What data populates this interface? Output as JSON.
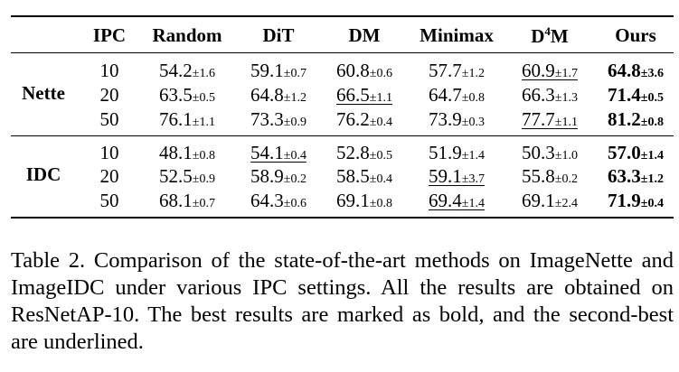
{
  "table": {
    "headers": [
      "IPC",
      "Random",
      "DiT",
      "DM",
      "Minimax",
      "D",
      "4",
      "M",
      "Ours"
    ],
    "groups": [
      {
        "name": "Nette",
        "rows": [
          {
            "ipc": "10",
            "cells": [
              [
                "54.2",
                "±1.6"
              ],
              [
                "59.1",
                "±0.7"
              ],
              [
                "60.8",
                "±0.6"
              ],
              [
                "57.7",
                "±1.2"
              ],
              [
                "60.9",
                "±1.7"
              ],
              [
                "64.8",
                "±3.6"
              ]
            ]
          },
          {
            "ipc": "20",
            "cells": [
              [
                "63.5",
                "±0.5"
              ],
              [
                "64.8",
                "±1.2"
              ],
              [
                "66.5",
                "±1.1"
              ],
              [
                "64.7",
                "±0.8"
              ],
              [
                "66.3",
                "±1.3"
              ],
              [
                "71.4",
                "±0.5"
              ]
            ]
          },
          {
            "ipc": "50",
            "cells": [
              [
                "76.1",
                "±1.1"
              ],
              [
                "73.3",
                "±0.9"
              ],
              [
                "76.2",
                "±0.4"
              ],
              [
                "73.9",
                "±0.3"
              ],
              [
                "77.7",
                "±1.1"
              ],
              [
                "81.2",
                "±0.8"
              ]
            ]
          }
        ]
      },
      {
        "name": "IDC",
        "rows": [
          {
            "ipc": "10",
            "cells": [
              [
                "48.1",
                "±0.8"
              ],
              [
                "54.1",
                "±0.4"
              ],
              [
                "52.8",
                "±0.5"
              ],
              [
                "51.9",
                "±1.4"
              ],
              [
                "50.3",
                "±1.0"
              ],
              [
                "57.0",
                "±1.4"
              ]
            ]
          },
          {
            "ipc": "20",
            "cells": [
              [
                "52.5",
                "±0.9"
              ],
              [
                "58.9",
                "±0.2"
              ],
              [
                "58.5",
                "±0.4"
              ],
              [
                "59.1",
                "±3.7"
              ],
              [
                "55.8",
                "±0.2"
              ],
              [
                "63.3",
                "±1.2"
              ]
            ]
          },
          {
            "ipc": "50",
            "cells": [
              [
                "68.1",
                "±0.7"
              ],
              [
                "64.3",
                "±0.6"
              ],
              [
                "69.1",
                "±0.8"
              ],
              [
                "69.4",
                "±1.4"
              ],
              [
                "69.1",
                "±2.4"
              ],
              [
                "71.9",
                "±0.4"
              ]
            ]
          }
        ]
      }
    ],
    "bold_cells": [
      "0.0.5",
      "0.1.5",
      "0.2.5",
      "1.0.5",
      "1.1.5",
      "1.2.5"
    ],
    "underlined_cells": [
      "0.0.4",
      "0.1.2",
      "0.2.4",
      "1.0.1",
      "1.1.3",
      "1.2.3"
    ]
  },
  "caption": "Table 2.  Comparison of the state-of-the-art methods on ImageNette and ImageIDC under various IPC settings. All the results are obtained on ResNetAP-10. The best results are marked as bold, and the second-best are underlined."
}
